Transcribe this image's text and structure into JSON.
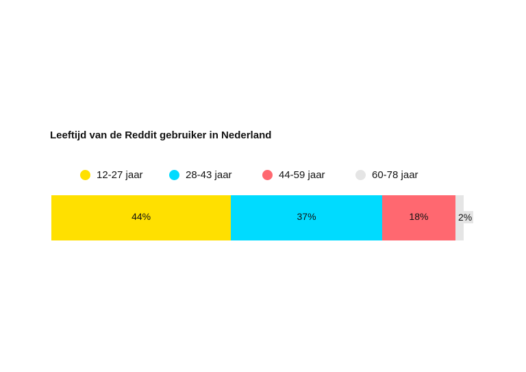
{
  "chart_data": {
    "type": "bar",
    "orientation": "horizontal-stacked",
    "title": "Leeftijd van de Reddit gebruiker in Nederland",
    "categories": [
      "12-27 jaar",
      "28-43 jaar",
      "44-59 jaar",
      "60-78 jaar"
    ],
    "values": [
      44,
      37,
      18,
      2
    ],
    "labels": [
      "44%",
      "37%",
      "18%",
      "2%"
    ],
    "colors": [
      "#FFE000",
      "#00DBFF",
      "#FF6870",
      "#E5E5E5"
    ],
    "legend_position": "top",
    "grid": false
  }
}
